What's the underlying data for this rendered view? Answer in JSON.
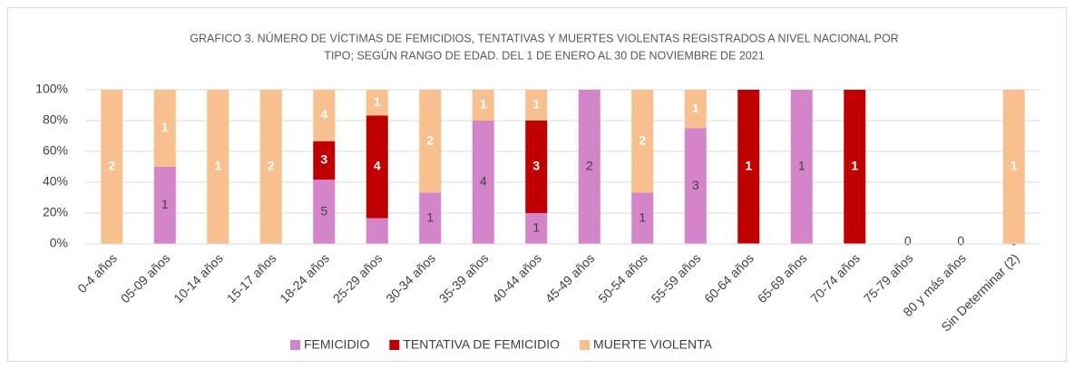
{
  "chart_data": {
    "type": "stacked_percent_bar",
    "title": [
      "GRAFICO 3. NÚMERO DE VÍCTIMAS DE FEMICIDIOS, TENTATIVAS Y MUERTES VIOLENTAS REGISTRADOS A NIVEL NACIONAL POR",
      "TIPO; SEGÚN RANGO DE EDAD. DEL 1  DE ENERO AL 30 DE NOVIEMBRE  DE 2021"
    ],
    "categories": [
      "0-4 años",
      "05-09 años",
      "10-14 años",
      "15-17 años",
      "18-24 años",
      "25-29 años",
      "30-34 años",
      "35-39 años",
      "40-44 años",
      "45-49 años",
      "50-54 años",
      "55-59 años",
      "60-64 años",
      "65-69 años",
      "70-74 años",
      "75-79 años",
      "80 y más años",
      "Sin Determinar (2)"
    ],
    "series": [
      {
        "name": "FEMICIDIO",
        "color": "#d484c8",
        "values": [
          0,
          1,
          0,
          0,
          5,
          1,
          1,
          4,
          1,
          2,
          1,
          3,
          0,
          1,
          0,
          0,
          0,
          0
        ],
        "value_labels": [
          null,
          "1",
          null,
          null,
          "5",
          null,
          "1",
          "4",
          "1",
          "2",
          "1",
          "3",
          null,
          "1",
          null,
          "0",
          "0",
          "0"
        ]
      },
      {
        "name": "TENTATIVA DE FEMICIDIO",
        "color": "#c00000",
        "values": [
          0,
          0,
          0,
          0,
          3,
          4,
          0,
          0,
          3,
          0,
          0,
          0,
          1,
          0,
          1,
          0,
          0,
          0
        ],
        "value_labels": [
          null,
          null,
          null,
          null,
          "3",
          "4",
          null,
          null,
          "3",
          null,
          null,
          null,
          "1",
          null,
          "1",
          null,
          null,
          null
        ]
      },
      {
        "name": "MUERTE VIOLENTA",
        "color": "#f8bf8f",
        "values": [
          2,
          1,
          1,
          2,
          4,
          1,
          2,
          1,
          1,
          0,
          2,
          1,
          0,
          0,
          0,
          0,
          0,
          1
        ],
        "value_labels": [
          "2",
          "1",
          "1",
          "2",
          "4",
          "1",
          "2",
          "1",
          "1",
          null,
          "2",
          "1",
          null,
          null,
          null,
          null,
          null,
          "1"
        ]
      }
    ],
    "ylim": [
      0,
      100
    ],
    "yticks": [
      {
        "value": 0,
        "label": "0%"
      },
      {
        "value": 20,
        "label": "20%"
      },
      {
        "value": 40,
        "label": "40%"
      },
      {
        "value": 60,
        "label": "60%"
      },
      {
        "value": 80,
        "label": "80%"
      },
      {
        "value": 100,
        "label": "100%"
      }
    ],
    "grid": true,
    "legend": "bottom"
  }
}
